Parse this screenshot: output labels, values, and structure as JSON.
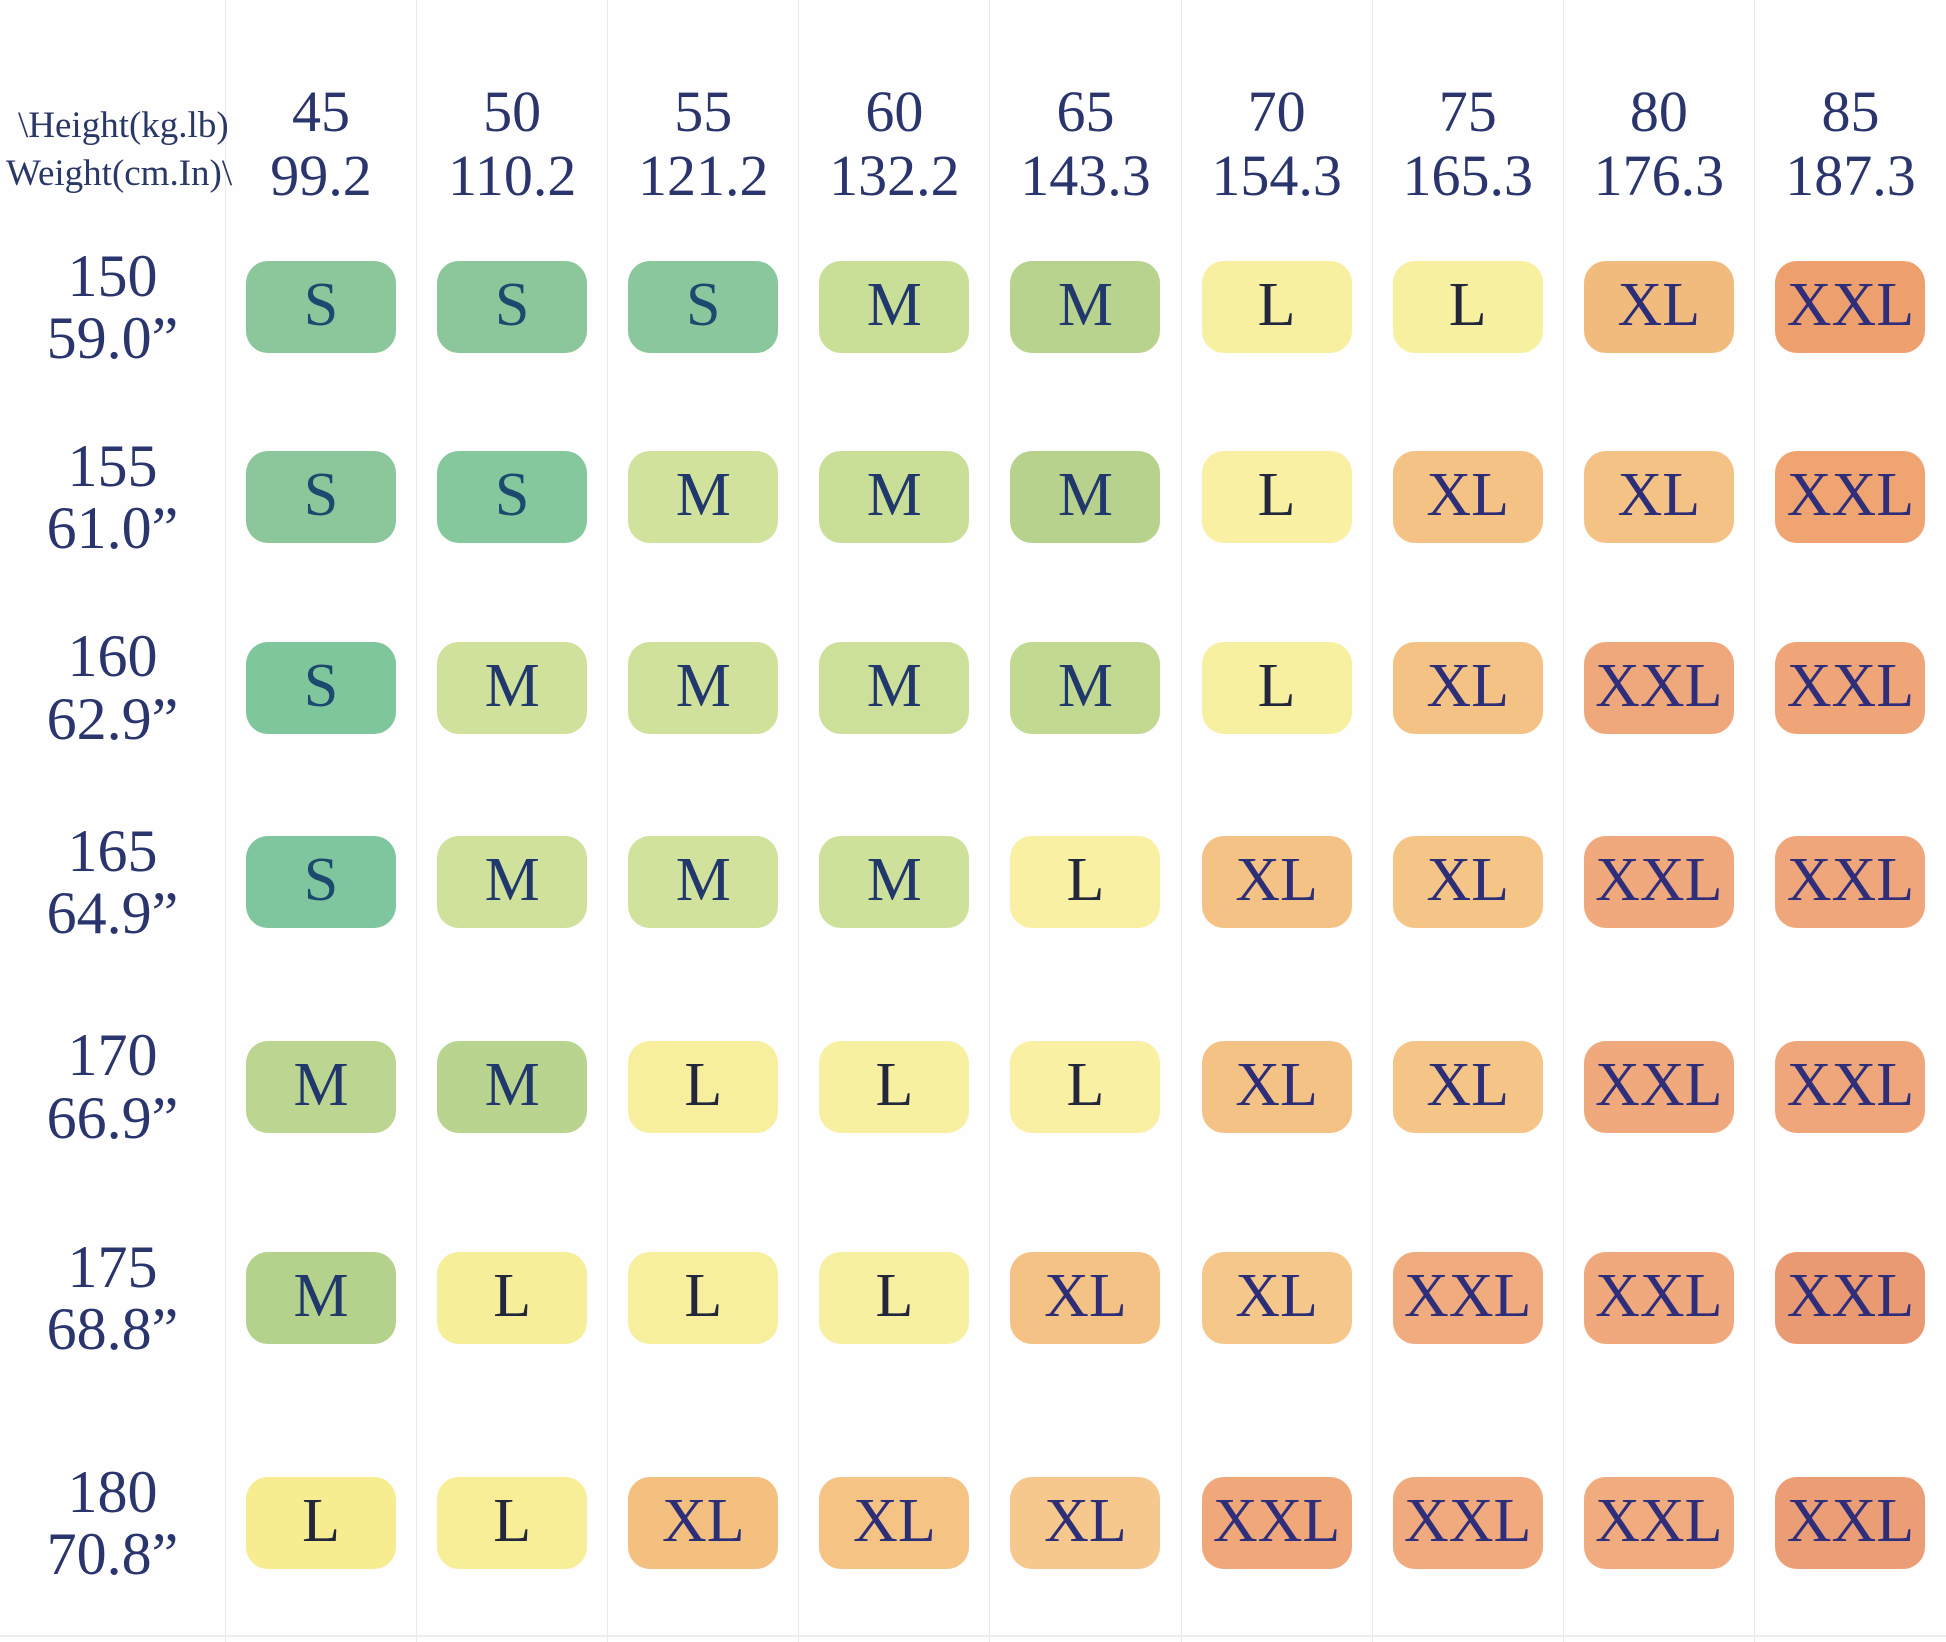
{
  "header": {
    "corner_line1": "\\Height(kg.lb)",
    "corner_line2": "Weight(cm.In)\\"
  },
  "palette": {
    "label_navy": "#2A356E",
    "size_text": {
      "S": "#1C4A6E",
      "M": "#21386C",
      "L": "#23273B",
      "XL": "#2D2E78",
      "XXL": "#2F2E7A"
    }
  },
  "columns": [
    {
      "kg": "45",
      "lb": "99.2"
    },
    {
      "kg": "50",
      "lb": "110.2"
    },
    {
      "kg": "55",
      "lb": "121.2"
    },
    {
      "kg": "60",
      "lb": "132.2"
    },
    {
      "kg": "65",
      "lb": "143.3"
    },
    {
      "kg": "70",
      "lb": "154.3"
    },
    {
      "kg": "75",
      "lb": "165.3"
    },
    {
      "kg": "80",
      "lb": "176.3"
    },
    {
      "kg": "85",
      "lb": "187.3"
    }
  ],
  "rows": [
    {
      "cm": "150",
      "in": "59.0”",
      "cells": [
        {
          "size": "S",
          "bg": "#8CC79B"
        },
        {
          "size": "S",
          "bg": "#8CC79B"
        },
        {
          "size": "S",
          "bg": "#8AC79C"
        },
        {
          "size": "M",
          "bg": "#C9DE97"
        },
        {
          "size": "M",
          "bg": "#B7D38D"
        },
        {
          "size": "L",
          "bg": "#F8F0A1"
        },
        {
          "size": "L",
          "bg": "#F8F0A1"
        },
        {
          "size": "XL",
          "bg": "#F2BB7E"
        },
        {
          "size": "XXL",
          "bg": "#EDA06E"
        }
      ]
    },
    {
      "cm": "155",
      "in": "61.0”",
      "cells": [
        {
          "size": "S",
          "bg": "#8CC79B"
        },
        {
          "size": "S",
          "bg": "#85C89E"
        },
        {
          "size": "M",
          "bg": "#D0E29C"
        },
        {
          "size": "M",
          "bg": "#C9DE97"
        },
        {
          "size": "M",
          "bg": "#B6D28C"
        },
        {
          "size": "L",
          "bg": "#F9F0A3"
        },
        {
          "size": "XL",
          "bg": "#F5C285"
        },
        {
          "size": "XL",
          "bg": "#F5C285"
        },
        {
          "size": "XXL",
          "bg": "#EFA471"
        }
      ]
    },
    {
      "cm": "160",
      "in": "62.9”",
      "cells": [
        {
          "size": "S",
          "bg": "#80C69D"
        },
        {
          "size": "M",
          "bg": "#CFE19B"
        },
        {
          "size": "M",
          "bg": "#CFE19B"
        },
        {
          "size": "M",
          "bg": "#CCE099"
        },
        {
          "size": "M",
          "bg": "#C2D992"
        },
        {
          "size": "L",
          "bg": "#F8F0A1"
        },
        {
          "size": "XL",
          "bg": "#F5C285"
        },
        {
          "size": "XXL",
          "bg": "#EFA87B"
        },
        {
          "size": "XXL",
          "bg": "#EFA578"
        }
      ]
    },
    {
      "cm": "165",
      "in": "64.9”",
      "cells": [
        {
          "size": "S",
          "bg": "#7FC59E"
        },
        {
          "size": "M",
          "bg": "#CFE19B"
        },
        {
          "size": "M",
          "bg": "#D0E29C"
        },
        {
          "size": "M",
          "bg": "#CEE19A"
        },
        {
          "size": "L",
          "bg": "#F9F0A4"
        },
        {
          "size": "XL",
          "bg": "#F5C285"
        },
        {
          "size": "XL",
          "bg": "#F5C487"
        },
        {
          "size": "XXL",
          "bg": "#F0A97C"
        },
        {
          "size": "XXL",
          "bg": "#EFA67A"
        }
      ]
    },
    {
      "cm": "170",
      "in": "66.9”",
      "cells": [
        {
          "size": "M",
          "bg": "#BCD691"
        },
        {
          "size": "M",
          "bg": "#B9D48F"
        },
        {
          "size": "L",
          "bg": "#F8EF9E"
        },
        {
          "size": "L",
          "bg": "#F8F0A1"
        },
        {
          "size": "L",
          "bg": "#F9F0A4"
        },
        {
          "size": "XL",
          "bg": "#F5C285"
        },
        {
          "size": "XL",
          "bg": "#F5C487"
        },
        {
          "size": "XXL",
          "bg": "#F0A97C"
        },
        {
          "size": "XXL",
          "bg": "#EFA67A"
        }
      ]
    },
    {
      "cm": "175",
      "in": "68.8”",
      "cells": [
        {
          "size": "M",
          "bg": "#B5D28C"
        },
        {
          "size": "L",
          "bg": "#F7EE9A"
        },
        {
          "size": "L",
          "bg": "#F8EF9E"
        },
        {
          "size": "L",
          "bg": "#F8F0A1"
        },
        {
          "size": "XL",
          "bg": "#F5C285"
        },
        {
          "size": "XL",
          "bg": "#F6C78B"
        },
        {
          "size": "XXL",
          "bg": "#F0AB7E"
        },
        {
          "size": "XXL",
          "bg": "#F0A97C"
        },
        {
          "size": "XXL",
          "bg": "#EA9A73"
        }
      ]
    },
    {
      "cm": "180",
      "in": "70.8”",
      "cells": [
        {
          "size": "L",
          "bg": "#F8EC90"
        },
        {
          "size": "L",
          "bg": "#F8EE98"
        },
        {
          "size": "XL",
          "bg": "#F4C080"
        },
        {
          "size": "XL",
          "bg": "#F5C384"
        },
        {
          "size": "XL",
          "bg": "#F6C88D"
        },
        {
          "size": "XXL",
          "bg": "#F0A87A"
        },
        {
          "size": "XXL",
          "bg": "#F0AA7D"
        },
        {
          "size": "XXL",
          "bg": "#F0AB7E"
        },
        {
          "size": "XXL",
          "bg": "#EB9D76"
        }
      ]
    }
  ],
  "chart_data": {
    "type": "table",
    "title": "Clothing size chart by height and weight",
    "columns_axis_label": "Height(kg.lb)",
    "rows_axis_label": "Weight(cm.In)",
    "columns_kg": [
      45,
      50,
      55,
      60,
      65,
      70,
      75,
      80,
      85
    ],
    "columns_lb": [
      99.2,
      110.2,
      121.2,
      132.2,
      143.3,
      154.3,
      165.3,
      176.3,
      187.3
    ],
    "rows_cm": [
      150,
      155,
      160,
      165,
      170,
      175,
      180
    ],
    "rows_inches": [
      "59.0",
      "61.0",
      "62.9",
      "64.9",
      "66.9",
      "68.8",
      "70.8"
    ],
    "cells": [
      [
        "S",
        "S",
        "S",
        "M",
        "M",
        "L",
        "L",
        "XL",
        "XXL"
      ],
      [
        "S",
        "S",
        "M",
        "M",
        "M",
        "L",
        "XL",
        "XL",
        "XXL"
      ],
      [
        "S",
        "M",
        "M",
        "M",
        "M",
        "L",
        "XL",
        "XXL",
        "XXL"
      ],
      [
        "S",
        "M",
        "M",
        "M",
        "L",
        "XL",
        "XL",
        "XXL",
        "XXL"
      ],
      [
        "M",
        "M",
        "L",
        "L",
        "L",
        "XL",
        "XL",
        "XXL",
        "XXL"
      ],
      [
        "M",
        "L",
        "L",
        "L",
        "XL",
        "XL",
        "XXL",
        "XXL",
        "XXL"
      ],
      [
        "L",
        "L",
        "XL",
        "XL",
        "XL",
        "XXL",
        "XXL",
        "XXL",
        "XXL"
      ]
    ],
    "legend_colors": {
      "S": "#8CC79B",
      "M": "#CFE19B",
      "L": "#F8F0A1",
      "XL": "#F5C285",
      "XXL": "#F0A877"
    },
    "grid": "faint vertical column separators",
    "legend_position": "none"
  }
}
